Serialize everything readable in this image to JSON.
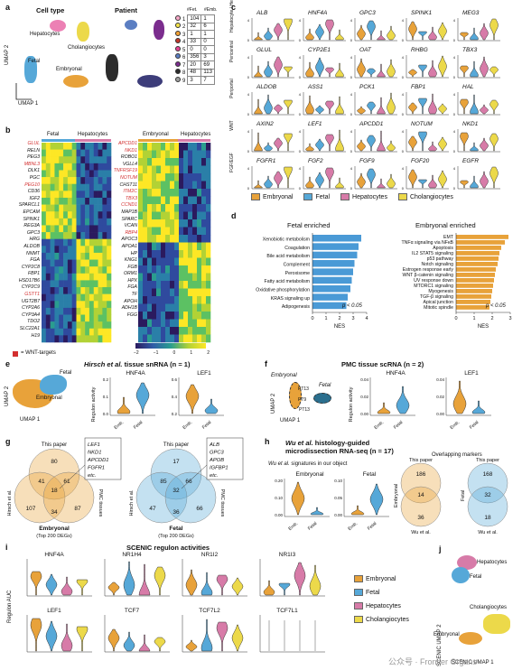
{
  "panel_a": {
    "label": "a",
    "cell_type_title": "Cell type",
    "patient_title": "Patient",
    "clusters": {
      "hep": "Hepatocytes",
      "chol": "Cholangiocytes",
      "fetal": "Fetal",
      "emb": "Embryonal"
    },
    "umap2": "UMAP 2",
    "umap1": "UMAP 1",
    "table_headers": [
      "#Fet.",
      "#Emb."
    ],
    "patients": [
      {
        "id": "1",
        "color": "#f7a8c8",
        "fet": "104",
        "emb": "1"
      },
      {
        "id": "2",
        "color": "#f2e34a",
        "fet": "32",
        "emb": "6"
      },
      {
        "id": "3",
        "color": "#f2a134",
        "fet": "1",
        "emb": "1"
      },
      {
        "id": "4",
        "color": "#c0392b",
        "fet": "33",
        "emb": "0"
      },
      {
        "id": "5",
        "color": "#e84393",
        "fet": "0",
        "emb": "0"
      },
      {
        "id": "6",
        "color": "#5b7ec2",
        "fet": "356",
        "emb": "3"
      },
      {
        "id": "7",
        "color": "#7b2d8e",
        "fet": "20",
        "emb": "69"
      },
      {
        "id": "8",
        "color": "#2c2c2c",
        "fet": "48",
        "emb": "113"
      },
      {
        "id": "9",
        "color": "#9e9e9e",
        "fet": "3",
        "emb": "7"
      }
    ]
  },
  "panel_b": {
    "label": "b",
    "left_groups": [
      "Fetal",
      "Hepatocytes"
    ],
    "right_groups": [
      "Embryonal",
      "Hepatocytes"
    ],
    "left_genes": [
      {
        "g": "GLUL",
        "wnt": true
      },
      {
        "g": "RELN",
        "wnt": false
      },
      {
        "g": "PEG3",
        "wnt": false
      },
      {
        "g": "MBNL3",
        "wnt": true
      },
      {
        "g": "DLK1",
        "wnt": false
      },
      {
        "g": "PGC",
        "wnt": false
      },
      {
        "g": "PEG10",
        "wnt": true
      },
      {
        "g": "CD36",
        "wnt": false
      },
      {
        "g": "IGF2",
        "wnt": false
      },
      {
        "g": "SPARCL1",
        "wnt": false
      },
      {
        "g": "EPCAM",
        "wnt": false
      },
      {
        "g": "SPINK1",
        "wnt": false
      },
      {
        "g": "REG3A",
        "wnt": false
      },
      {
        "g": "GPC3",
        "wnt": false
      },
      {
        "g": "HRG",
        "wnt": false
      },
      {
        "g": "ALDOB",
        "wnt": false
      },
      {
        "g": "NNMT",
        "wnt": false
      },
      {
        "g": "FGA",
        "wnt": false
      },
      {
        "g": "CYP2C8",
        "wnt": false
      },
      {
        "g": "FBP1",
        "wnt": false
      },
      {
        "g": "HSD17B6",
        "wnt": false
      },
      {
        "g": "CYP2C9",
        "wnt": false
      },
      {
        "g": "GSTT1",
        "wnt": true
      },
      {
        "g": "UGT2B7",
        "wnt": false
      },
      {
        "g": "CYP2A6",
        "wnt": false
      },
      {
        "g": "CYP3A4",
        "wnt": false
      },
      {
        "g": "TDO2",
        "wnt": false
      },
      {
        "g": "SLC22A1",
        "wnt": false
      },
      {
        "g": "H19",
        "wnt": false
      }
    ],
    "right_genes": [
      {
        "g": "APCDD1",
        "wnt": true
      },
      {
        "g": "NKD1",
        "wnt": true
      },
      {
        "g": "ROBO1",
        "wnt": false
      },
      {
        "g": "VGLL4",
        "wnt": false
      },
      {
        "g": "TNFRSF19",
        "wnt": true
      },
      {
        "g": "NOTUM",
        "wnt": true
      },
      {
        "g": "CHST11",
        "wnt": false
      },
      {
        "g": "ITM2C",
        "wnt": true
      },
      {
        "g": "TBX3",
        "wnt": true
      },
      {
        "g": "CCND1",
        "wnt": true
      },
      {
        "g": "MAP1B",
        "wnt": false
      },
      {
        "g": "SPARC",
        "wnt": false
      },
      {
        "g": "VCAN",
        "wnt": false
      },
      {
        "g": "RBP4",
        "wnt": true
      },
      {
        "g": "APOC3",
        "wnt": false
      },
      {
        "g": "APOA1",
        "wnt": false
      },
      {
        "g": "HP",
        "wnt": false
      },
      {
        "g": "KNG1",
        "wnt": false
      },
      {
        "g": "FGB",
        "wnt": false
      },
      {
        "g": "ORM1",
        "wnt": false
      },
      {
        "g": "HPX",
        "wnt": false
      },
      {
        "g": "FGA",
        "wnt": false
      },
      {
        "g": "TF",
        "wnt": false
      },
      {
        "g": "APOH",
        "wnt": false
      },
      {
        "g": "ADH1B",
        "wnt": false
      },
      {
        "g": "FGG",
        "wnt": false
      }
    ],
    "wnt_legend": "= WNT-targets",
    "scale_ticks": [
      "−2",
      "−1",
      "0",
      "1",
      "2"
    ]
  },
  "panel_c": {
    "label": "c",
    "rows": [
      {
        "side": "Hepatocyte / Hepatoblast",
        "genes": [
          "ALB",
          "HNF4A",
          "GPC3",
          "SPINK1",
          "MEG3"
        ]
      },
      {
        "side": "Pericentral",
        "genes": [
          "GLUL",
          "CYP2E1",
          "OAT",
          "RHBG",
          "TBX3"
        ]
      },
      {
        "side": "Periportal",
        "genes": [
          "ALDOB",
          "ASS1",
          "PCK1",
          "FBP1",
          "HAL"
        ]
      },
      {
        "side": "WNT",
        "genes": [
          "AXIN2",
          "LEF1",
          "APCDD1",
          "NOTUM",
          "NKD1"
        ]
      },
      {
        "side": "FGF/EGF",
        "genes": [
          "FGFR1",
          "FGF2",
          "FGF9",
          "FGF20",
          "EGFR"
        ]
      }
    ],
    "legend": [
      "Embryonal",
      "Fetal",
      "Hepatocytes",
      "Cholangiocytes"
    ]
  },
  "colors": {
    "emb": "#e8a23a",
    "fet": "#56a8d8",
    "hep": "#d77ba8",
    "chol": "#ecd94a"
  },
  "panel_d": {
    "label": "d",
    "fetal_title": "Fetal enriched",
    "emb_title": "Embryonal enriched",
    "fetal_terms": [
      "Xenobiotic metabolism",
      "Coagulation",
      "Bile acid metabolism",
      "Complement",
      "Peroxisome",
      "Fatty acid metabolism",
      "Oxidative phosphorylation",
      "KRAS signaling up",
      "Adipogenesis"
    ],
    "emb_terms": [
      "EMT",
      "TNFα signaling via NFκB",
      "Apoptosis",
      "IL2 STAT5 signaling",
      "p53 pathway",
      "Notch signaling",
      "Estrogen response early",
      "WNT β-catenin signaling",
      "UV response down",
      "MTORC1 signaling",
      "Myogenesis",
      "TGF-β signaling",
      "Apical junction",
      "Mitotic spindle"
    ],
    "pval": "p < 0.05",
    "xlabel": "NES",
    "fetal_ticks": [
      "0",
      "1",
      "2",
      "3",
      "4"
    ],
    "emb_ticks": [
      "0",
      "1",
      "2",
      "3"
    ]
  },
  "chart_data": [
    {
      "type": "bar",
      "title": "Fetal enriched",
      "xlabel": "NES",
      "categories": [
        "Xenobiotic metabolism",
        "Coagulation",
        "Bile acid metabolism",
        "Complement",
        "Peroxisome",
        "Fatty acid metabolism",
        "Oxidative phosphorylation",
        "KRAS signaling up",
        "Adipogenesis"
      ],
      "values": [
        3.6,
        3.4,
        3.3,
        3.1,
        3.0,
        2.9,
        2.8,
        2.6,
        2.5
      ],
      "xlim": [
        0,
        4
      ]
    },
    {
      "type": "bar",
      "title": "Embryonal enriched",
      "xlabel": "NES",
      "categories": [
        "EMT",
        "TNFα signaling via NFκB",
        "Apoptosis",
        "IL2 STAT5 signaling",
        "p53 pathway",
        "Notch signaling",
        "Estrogen response early",
        "WNT β-catenin signaling",
        "UV response down",
        "MTORC1 signaling",
        "Myogenesis",
        "TGF-β signaling",
        "Apical junction",
        "Mitotic spindle"
      ],
      "values": [
        2.9,
        2.7,
        2.5,
        2.4,
        2.35,
        2.3,
        2.2,
        2.15,
        2.1,
        2.05,
        2.0,
        1.95,
        1.9,
        1.85
      ],
      "xlim": [
        0,
        3
      ]
    }
  ],
  "panel_e": {
    "label": "e",
    "title_italic": "Hirsch et al.",
    "title_rest": " tissue snRNA (n = 1)",
    "fetal": "Fetal",
    "embryonal": "Embryonal",
    "umap1": "UMAP 1",
    "umap2": "UMAP 2",
    "v1": "HNF4A",
    "v2": "LEF1",
    "ylabel": "Regulon activity",
    "x": [
      "Emb.",
      "Fetal"
    ],
    "ticks1": [
      "0.0",
      "0.1",
      "0.2"
    ],
    "ticks2": [
      "0.2",
      "0.4",
      "0.6"
    ]
  },
  "panel_f": {
    "label": "f",
    "title": "PMC tissue scRNA (n = 2)",
    "embryonal": "Embryonal",
    "fetal": "Fetal",
    "pts": [
      "PT13",
      "PT9",
      "PT13"
    ],
    "umap1": "UMAP 1",
    "umap2": "UMAP 2",
    "v1": "HNF4A",
    "v2": "LEF1",
    "ylabel": "Regulon activity",
    "x": [
      "Emb.",
      "Fetal"
    ],
    "ticks1": [
      "0.00",
      "0.02",
      "0.04"
    ],
    "ticks2": [
      "0.00",
      "0.02",
      "0.04"
    ]
  },
  "panel_g": {
    "label": "g",
    "this_paper": "This paper",
    "hirsch": "Hirsch et al.",
    "pmc": "PMC tissues",
    "emb_caption": "Embryonal",
    "fet_caption": "Fetal",
    "top": "(Top 200 DEGs)",
    "emb_nums": [
      "80",
      "41",
      "61",
      "18",
      "107",
      "34",
      "87"
    ],
    "fet_nums": [
      "17",
      "85",
      "66",
      "32",
      "47",
      "36",
      "66"
    ],
    "emb_box": [
      "LEF1",
      "NKD1",
      "APCDD1",
      "FGFR1",
      "etc."
    ],
    "fet_box": [
      "ALB",
      "GPC3",
      "APOB",
      "IGFBP1",
      "etc."
    ]
  },
  "panel_h": {
    "label": "h",
    "title_italic": "Wu et al.",
    "title_rest": " histology-guided",
    "title_line2": "microdissection RNA-seq (n = 17)",
    "sub_italic": "Wu et al.",
    "sub_rest": " signatures in our object",
    "v1": "Embryonal",
    "v2": "Fetal",
    "x": [
      "Emb.",
      "Fetal"
    ],
    "ticks1": [
      "0.00",
      "0.10",
      "0.20"
    ],
    "ticks2": [
      "0.00",
      "0.05",
      "0.10"
    ],
    "overlap_title": "Overlapping markers",
    "this_paper": "This paper",
    "wu": "Wu et al.",
    "emb_side": "Embryonal",
    "fet_side": "Fetal",
    "emb_nums": [
      "186",
      "14",
      "36"
    ],
    "fet_nums": [
      "168",
      "32",
      "18"
    ]
  },
  "panel_i": {
    "label": "i",
    "title": "SCENIC regulon activities",
    "ylabel": "Regulon AUC",
    "top": [
      "HNF4A",
      "NR1H4",
      "NR1I2",
      "NR1I3"
    ],
    "bottom": [
      "LEF1",
      "TCF7",
      "TCF7L2",
      "TCF7L1"
    ],
    "legend": [
      "Embryonal",
      "Fetal",
      "Hepatocytes",
      "Cholangiocytes"
    ]
  },
  "panel_j": {
    "label": "j",
    "hep": "Hepatocytes",
    "fetal": "Fetal",
    "chol": "Cholangiocytes",
    "emb": "Embryonal",
    "umap2": "SCENIC UMAP 2",
    "umap1": "SCENIC UMAP 1"
  },
  "watermark": "公众号 · Frontier Organs"
}
